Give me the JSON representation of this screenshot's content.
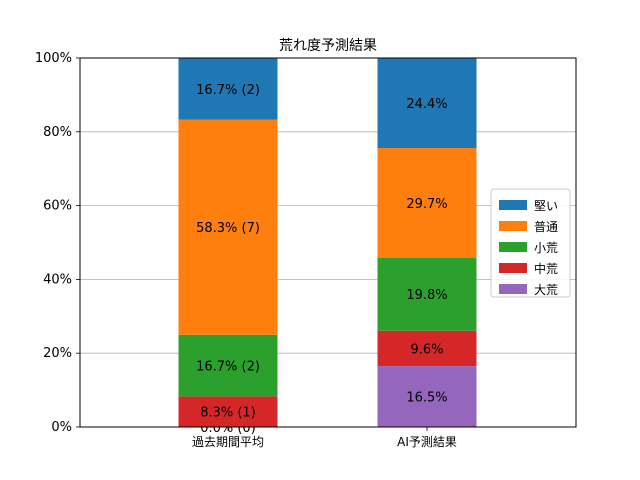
{
  "chart_data": {
    "type": "bar",
    "stacked": true,
    "title": "荒れ度予測結果",
    "xlabel": "",
    "ylabel": "",
    "ylim": [
      0,
      100
    ],
    "y_ticks": [
      "0%",
      "20%",
      "40%",
      "60%",
      "80%",
      "100%"
    ],
    "grid": "horizontal",
    "legend_position": "right",
    "categories": [
      "過去期間平均",
      "AI予測結果"
    ],
    "series": [
      {
        "name": "大荒",
        "color": "#9467bd",
        "values": [
          0.0,
          16.5
        ],
        "labels": [
          "0.0% (0)",
          "16.5%"
        ]
      },
      {
        "name": "中荒",
        "color": "#d62728",
        "values": [
          8.3,
          9.6
        ],
        "labels": [
          "8.3% (1)",
          "9.6%"
        ]
      },
      {
        "name": "小荒",
        "color": "#2ca02c",
        "values": [
          16.7,
          19.8
        ],
        "labels": [
          "16.7% (2)",
          "19.8%"
        ]
      },
      {
        "name": "普通",
        "color": "#ff7f0e",
        "values": [
          58.3,
          29.7
        ],
        "labels": [
          "58.3% (7)",
          "29.7%"
        ]
      },
      {
        "name": "堅い",
        "color": "#1f77b4",
        "values": [
          16.7,
          24.4
        ],
        "labels": [
          "16.7% (2)",
          "24.4%"
        ]
      }
    ],
    "legend_order": [
      "堅い",
      "普通",
      "小荒",
      "中荒",
      "大荒"
    ]
  }
}
